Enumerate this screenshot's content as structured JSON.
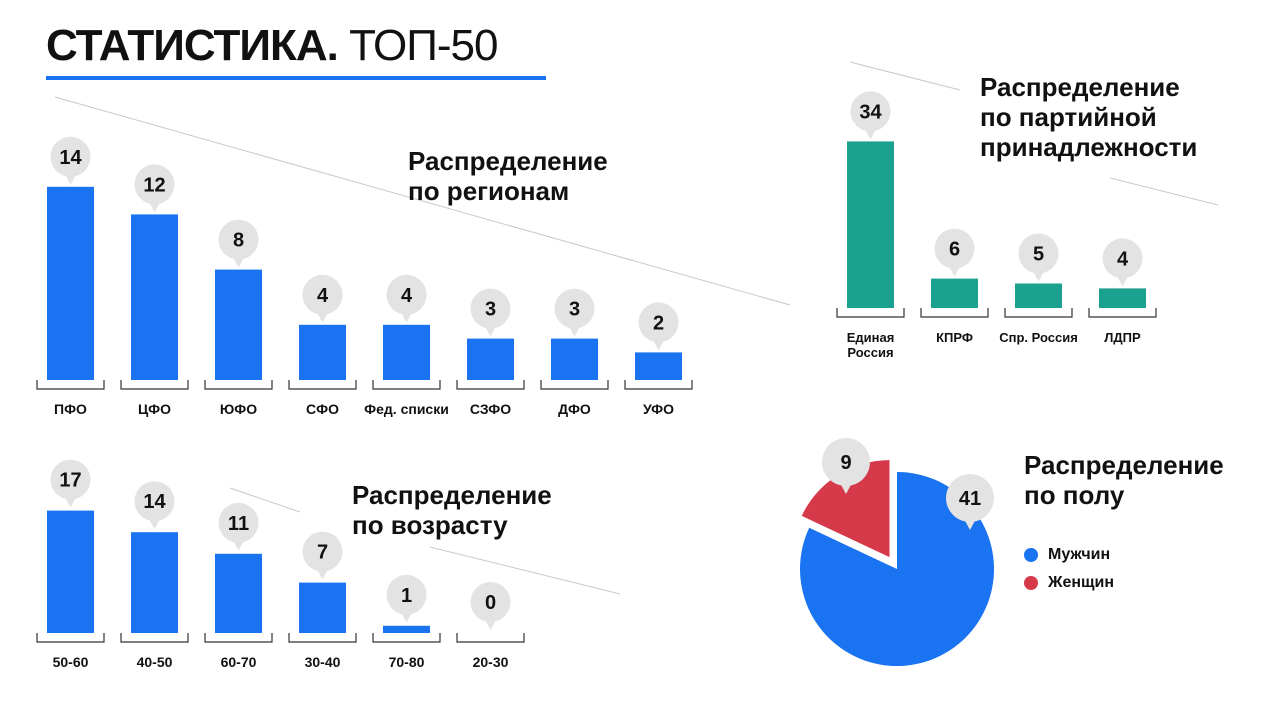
{
  "title": {
    "bold": "СТАТИСТИКА.",
    "light": "ТОП-50"
  },
  "colors": {
    "blue": "#1a73f0",
    "teal": "#1aa190",
    "red": "#d6394a",
    "bubble": "#e3e3e3",
    "accent_rule": "#1a73f0"
  },
  "chart_data": [
    {
      "type": "bar",
      "title": [
        "Распределение",
        "по регионам"
      ],
      "categories": [
        "ПФО",
        "ЦФО",
        "ЮФО",
        "СФО",
        "Фед. списки",
        "СЗФО",
        "ДФО",
        "УФО"
      ],
      "values": [
        14,
        12,
        8,
        4,
        4,
        3,
        3,
        2
      ],
      "color": "#1a73f0"
    },
    {
      "type": "bar",
      "title": [
        "Распределение",
        "по партийной",
        "принадлежности"
      ],
      "categories": [
        [
          "Единая",
          "Россия"
        ],
        [
          "КПРФ"
        ],
        [
          "Спр. Россия"
        ],
        [
          "ЛДПР"
        ]
      ],
      "values": [
        34,
        6,
        5,
        4
      ],
      "color": "#1aa190"
    },
    {
      "type": "bar",
      "title": [
        "Распределение",
        "по возрасту"
      ],
      "categories": [
        "50-60",
        "40-50",
        "60-70",
        "30-40",
        "70-80",
        "20-30"
      ],
      "values": [
        17,
        14,
        11,
        7,
        1,
        0
      ],
      "color": "#1a73f0"
    },
    {
      "type": "pie",
      "title": [
        "Распределение",
        "по полу"
      ],
      "slices": [
        {
          "label": "Мужчин",
          "value": 41,
          "color": "#1a73f0"
        },
        {
          "label": "Женщин",
          "value": 9,
          "color": "#d6394a"
        }
      ],
      "legend": "right"
    }
  ]
}
